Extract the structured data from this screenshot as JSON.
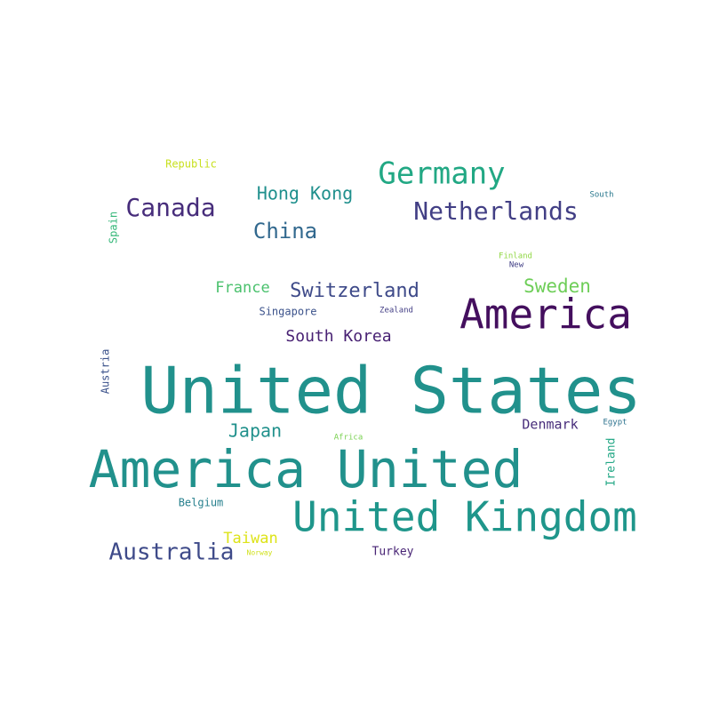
{
  "words": [
    {
      "text": "United States",
      "color": "#21918c"
    },
    {
      "text": "America United",
      "color": "#21918c"
    },
    {
      "text": "United Kingdom",
      "color": "#1f968b"
    },
    {
      "text": "America",
      "color": "#440f5e"
    },
    {
      "text": "Germany",
      "color": "#22a884"
    },
    {
      "text": "Netherlands",
      "color": "#423f85"
    },
    {
      "text": "Canada",
      "color": "#472d7b"
    },
    {
      "text": "Australia",
      "color": "#3e4a89"
    },
    {
      "text": "China",
      "color": "#31688e"
    },
    {
      "text": "Switzerland",
      "color": "#3e4a89"
    },
    {
      "text": "Hong Kong",
      "color": "#20908d"
    },
    {
      "text": "Sweden",
      "color": "#6ece58"
    },
    {
      "text": "South Korea",
      "color": "#482173"
    },
    {
      "text": "Japan",
      "color": "#21918c"
    },
    {
      "text": "France",
      "color": "#4ac16d"
    },
    {
      "text": "Denmark",
      "color": "#472c7a"
    },
    {
      "text": "Taiwan",
      "color": "#dde318"
    },
    {
      "text": "Singapore",
      "color": "#3b528b"
    },
    {
      "text": "Turkey",
      "color": "#482475"
    },
    {
      "text": "Belgium",
      "color": "#27808e"
    },
    {
      "text": "Republic",
      "color": "#c8e020"
    },
    {
      "text": "Spain",
      "color": "#35b779"
    },
    {
      "text": "Austria",
      "color": "#3b528b"
    },
    {
      "text": "Ireland",
      "color": "#22a785"
    },
    {
      "text": "South",
      "color": "#2a788e"
    },
    {
      "text": "Finland",
      "color": "#90d743"
    },
    {
      "text": "New",
      "color": "#424086"
    },
    {
      "text": "Zealand",
      "color": "#433e85"
    },
    {
      "text": "Egypt",
      "color": "#2c728e"
    },
    {
      "text": "Africa",
      "color": "#7ad151"
    },
    {
      "text": "Norway",
      "color": "#d0e11c"
    }
  ]
}
